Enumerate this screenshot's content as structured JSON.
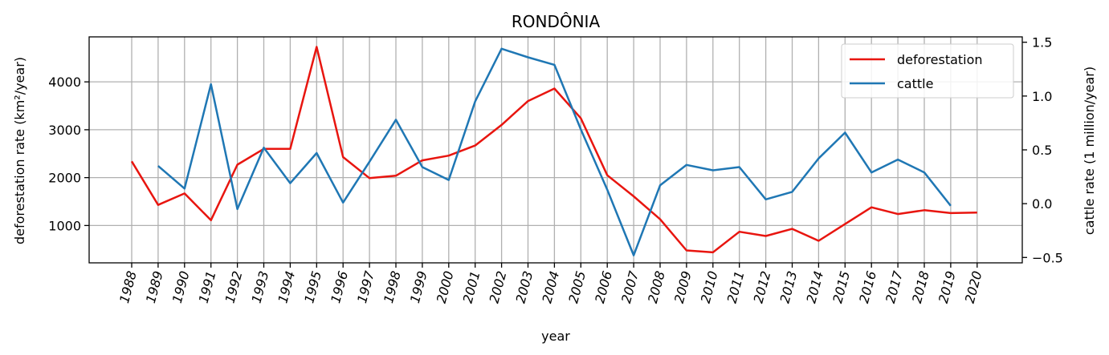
{
  "chart_data": {
    "type": "line",
    "title": "RONDÔNIA",
    "xlabel": "year",
    "ylabel_left": "deforestation rate (km²/year)",
    "ylabel_right": "cattle rate (1 million/year)",
    "x": [
      1988,
      1989,
      1990,
      1991,
      1992,
      1993,
      1994,
      1995,
      1996,
      1997,
      1998,
      1999,
      2000,
      2001,
      2002,
      2003,
      2004,
      2005,
      2006,
      2007,
      2008,
      2009,
      2010,
      2011,
      2012,
      2013,
      2014,
      2015,
      2016,
      2017,
      2018,
      2019,
      2020
    ],
    "x_tick_labels": [
      "1988",
      "1989",
      "1990",
      "1991",
      "1992",
      "1993",
      "1994",
      "1995",
      "1996",
      "1997",
      "1998",
      "1999",
      "2000",
      "2001",
      "2002",
      "2003",
      "2004",
      "2005",
      "2006",
      "2007",
      "2008",
      "2009",
      "2010",
      "2011",
      "2012",
      "2013",
      "2014",
      "2015",
      "2016",
      "2017",
      "2018",
      "2019",
      "2020"
    ],
    "y_left_ticks": [
      1000,
      2000,
      3000,
      4000
    ],
    "y_left_tick_labels": [
      "1000",
      "2000",
      "3000",
      "4000"
    ],
    "y_right_ticks": [
      -0.5,
      0.0,
      0.5,
      1.0,
      1.5
    ],
    "y_right_tick_labels": [
      "−0.5",
      "0.0",
      "0.5",
      "1.0",
      "1.5"
    ],
    "ylim_left": [
      220,
      4940
    ],
    "ylim_right": [
      -0.55,
      1.55
    ],
    "grid": true,
    "legend_position": "top-right",
    "series": [
      {
        "name": "deforestation",
        "axis": "left",
        "color": "#e8150f",
        "x": [
          1988,
          1989,
          1990,
          1991,
          1992,
          1993,
          1994,
          1995,
          1996,
          1997,
          1998,
          1999,
          2000,
          2001,
          2002,
          2003,
          2004,
          2005,
          2006,
          2007,
          2008,
          2009,
          2010,
          2011,
          2012,
          2013,
          2014,
          2015,
          2016,
          2017,
          2018,
          2019,
          2020
        ],
        "values": [
          2340,
          1430,
          1670,
          1110,
          2270,
          2600,
          2600,
          4730,
          2430,
          1990,
          2040,
          2360,
          2460,
          2670,
          3100,
          3600,
          3860,
          3240,
          2050,
          1610,
          1130,
          480,
          440,
          870,
          780,
          930,
          680,
          1030,
          1380,
          1240,
          1320,
          1260,
          1270
        ]
      },
      {
        "name": "cattle",
        "axis": "right",
        "color": "#1f77b4",
        "x": [
          1989,
          1990,
          1991,
          1992,
          1993,
          1994,
          1995,
          1996,
          1997,
          1998,
          1999,
          2000,
          2001,
          2002,
          2003,
          2004,
          2005,
          2006,
          2007,
          2008,
          2009,
          2010,
          2011,
          2012,
          2013,
          2014,
          2015,
          2016,
          2017,
          2018,
          2019
        ],
        "values": [
          0.35,
          0.14,
          1.11,
          -0.05,
          0.52,
          0.19,
          0.47,
          0.01,
          0.39,
          0.78,
          0.34,
          0.22,
          0.95,
          1.44,
          1.36,
          1.29,
          0.69,
          0.13,
          -0.48,
          0.17,
          0.36,
          0.31,
          0.34,
          0.04,
          0.11,
          0.42,
          0.66,
          0.29,
          0.41,
          0.29,
          -0.02
        ]
      }
    ]
  }
}
